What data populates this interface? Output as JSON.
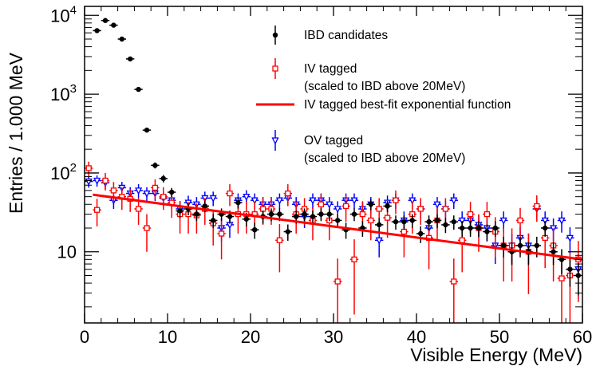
{
  "chart_data": {
    "type": "scatter",
    "title": "",
    "xlabel": "Visible Energy (MeV)",
    "ylabel": "Entries / 1.000 MeV",
    "xlim": [
      0,
      60
    ],
    "ylim": [
      1.25,
      13000
    ],
    "y_scale": "log",
    "grid": false,
    "legend_position": "top-right",
    "x_ticks": [
      0,
      10,
      20,
      30,
      40,
      50,
      60
    ],
    "x_tick_labels": [
      "0",
      "10",
      "20",
      "30",
      "40",
      "50",
      "60"
    ],
    "y_ticks": [
      {
        "value": 10,
        "base": "10",
        "exp": ""
      },
      {
        "value": 100,
        "base": "10",
        "exp": "2"
      },
      {
        "value": 1000,
        "base": "10",
        "exp": "3"
      },
      {
        "value": 10000,
        "base": "10",
        "exp": "4"
      }
    ],
    "series": [
      {
        "name": "IBD candidates",
        "color": "#000000",
        "marker": "filled-circle",
        "x": [
          1.5,
          2.5,
          3.5,
          4.5,
          5.5,
          6.5,
          7.5,
          8.5,
          9.5,
          10.5,
          11.5,
          12.5,
          13.5,
          14.5,
          15.5,
          16.5,
          17.5,
          18.5,
          19.5,
          20.5,
          21.5,
          22.5,
          23.5,
          24.5,
          25.5,
          26.5,
          27.5,
          28.5,
          29.5,
          30.5,
          31.5,
          32.5,
          33.5,
          34.5,
          35.5,
          36.5,
          37.5,
          38.5,
          39.5,
          40.5,
          41.5,
          42.5,
          43.5,
          44.5,
          45.5,
          46.5,
          47.5,
          48.5,
          49.5,
          50.5,
          51.5,
          52.5,
          53.5,
          54.5,
          55.5,
          56.5,
          57.5,
          58.5,
          59.5
        ],
        "y": [
          6400,
          8600,
          7500,
          5000,
          2800,
          1150,
          350,
          125,
          85,
          57,
          33,
          35,
          30,
          38,
          25,
          30,
          28,
          42,
          26,
          19,
          28,
          30,
          30,
          18,
          28,
          30,
          28,
          30,
          30,
          25,
          19,
          30,
          20,
          40,
          22,
          38,
          24,
          24,
          25,
          17,
          24,
          25,
          22,
          24,
          20,
          20,
          20,
          18,
          20,
          12,
          10,
          12,
          10,
          12,
          20,
          10,
          8,
          6,
          5
        ],
        "err_y": [
          80,
          93,
          87,
          71,
          53,
          34,
          19,
          11,
          9.2,
          7.5,
          5.7,
          5.9,
          5.5,
          6.2,
          5,
          5.5,
          5.3,
          6.5,
          5.1,
          4.4,
          5.3,
          5.5,
          5.5,
          4.2,
          5.3,
          5.5,
          5.3,
          5.5,
          5.5,
          5,
          4.4,
          5.5,
          4.5,
          6.3,
          4.7,
          6.2,
          4.9,
          4.9,
          5,
          4.1,
          4.9,
          5,
          4.7,
          4.9,
          4.5,
          4.5,
          4.5,
          4.2,
          4.5,
          3.5,
          3.2,
          3.5,
          3.2,
          3.5,
          4.5,
          3.2,
          2.8,
          2.4,
          2.2
        ]
      },
      {
        "name": "IV tagged",
        "subtitle": "(scaled to IBD above 20MeV)",
        "color": "#ff0000",
        "marker": "open-square",
        "x": [
          0.5,
          1.5,
          2.5,
          3.5,
          4.5,
          5.5,
          6.5,
          7.5,
          8.5,
          9.5,
          10.5,
          11.5,
          12.5,
          13.5,
          14.5,
          15.5,
          16.5,
          17.5,
          18.5,
          19.5,
          20.5,
          21.5,
          22.5,
          23.5,
          24.5,
          25.5,
          26.5,
          27.5,
          28.5,
          29.5,
          30.5,
          31.5,
          32.5,
          33.5,
          34.5,
          35.5,
          36.5,
          37.5,
          38.5,
          39.5,
          40.5,
          41.5,
          42.5,
          43.5,
          44.5,
          45.5,
          46.5,
          47.5,
          48.5,
          49.5,
          50.5,
          51.5,
          52.5,
          53.5,
          54.5,
          55.5,
          56.5,
          57.5,
          58.5,
          59.5
        ],
        "y": [
          115,
          34,
          80,
          60,
          50,
          47,
          35,
          20,
          65,
          50,
          42,
          30,
          30,
          29,
          35,
          23,
          17,
          55,
          30,
          30,
          30,
          35,
          35,
          14,
          55,
          30,
          35,
          25,
          40,
          25,
          4.2,
          38,
          8,
          30,
          25,
          35,
          27,
          45,
          18,
          30,
          35,
          15,
          25,
          35,
          4.2,
          14,
          30,
          20,
          30,
          18,
          12,
          12,
          25,
          10,
          38,
          15,
          12,
          4.6,
          5,
          8
        ],
        "err_y": [
          24,
          13,
          20,
          17,
          16,
          15,
          13,
          10,
          18,
          16,
          15,
          13,
          13,
          12,
          13,
          11,
          9,
          17,
          13,
          13,
          13,
          13,
          13,
          8.5,
          17,
          13,
          13,
          11,
          14,
          11,
          4,
          14,
          6.4,
          13,
          11,
          13,
          12,
          15,
          9.5,
          13,
          13,
          9,
          11,
          13,
          4,
          8.5,
          13,
          10,
          13,
          9.5,
          7.8,
          7.8,
          11,
          7.1,
          14,
          8.8,
          7.8,
          4.2,
          4.5,
          5.7
        ]
      },
      {
        "name": "OV tagged",
        "subtitle": "(scaled to IBD above 20MeV)",
        "color": "#0000ff",
        "marker": "inverted-triangle",
        "x": [
          0.5,
          1.5,
          2.5,
          3.5,
          4.5,
          5.5,
          6.5,
          7.5,
          8.5,
          9.5,
          10.5,
          11.5,
          12.5,
          13.5,
          14.5,
          15.5,
          16.5,
          17.5,
          18.5,
          19.5,
          20.5,
          21.5,
          22.5,
          23.5,
          24.5,
          25.5,
          26.5,
          27.5,
          28.5,
          29.5,
          30.5,
          31.5,
          32.5,
          33.5,
          34.5,
          35.5,
          36.5,
          37.5,
          38.5,
          39.5,
          40.5,
          41.5,
          42.5,
          43.5,
          44.5,
          45.5,
          46.5,
          47.5,
          48.5,
          49.5,
          50.5,
          51.5,
          52.5,
          53.5,
          54.5,
          55.5,
          56.5,
          57.5,
          58.5,
          59.5
        ],
        "y": [
          78,
          80,
          75,
          45,
          65,
          55,
          60,
          55,
          55,
          48,
          45,
          35,
          42,
          40,
          48,
          48,
          20,
          22,
          45,
          50,
          45,
          40,
          40,
          45,
          48,
          40,
          28,
          45,
          45,
          40,
          35,
          45,
          45,
          35,
          40,
          14,
          42,
          45,
          25,
          45,
          35,
          20,
          40,
          35,
          45,
          25,
          25,
          22,
          20,
          12,
          25,
          12,
          15,
          12,
          35,
          25,
          20,
          25,
          15,
          6
        ],
        "err_y": [
          13,
          13,
          13,
          10,
          12,
          11,
          12,
          11,
          11,
          10,
          10,
          9,
          9.5,
          9.5,
          10,
          10,
          6.5,
          7,
          10,
          10.5,
          10,
          9.5,
          9.5,
          10,
          10,
          9.5,
          8,
          10,
          10,
          9.5,
          8.7,
          10,
          10,
          8.7,
          9.5,
          5.5,
          9.7,
          10,
          7.5,
          10,
          8.7,
          6.5,
          9.5,
          8.7,
          10,
          7.5,
          7.5,
          7,
          6.5,
          5,
          7.5,
          5,
          5.5,
          5,
          8.7,
          7.5,
          6.5,
          7.5,
          5.5,
          3.5
        ]
      },
      {
        "name": "IV tagged best-fit exponential function",
        "color": "#ff0000",
        "marker": "line",
        "x": [
          1,
          60
        ],
        "y": [
          53,
          8
        ]
      }
    ]
  }
}
